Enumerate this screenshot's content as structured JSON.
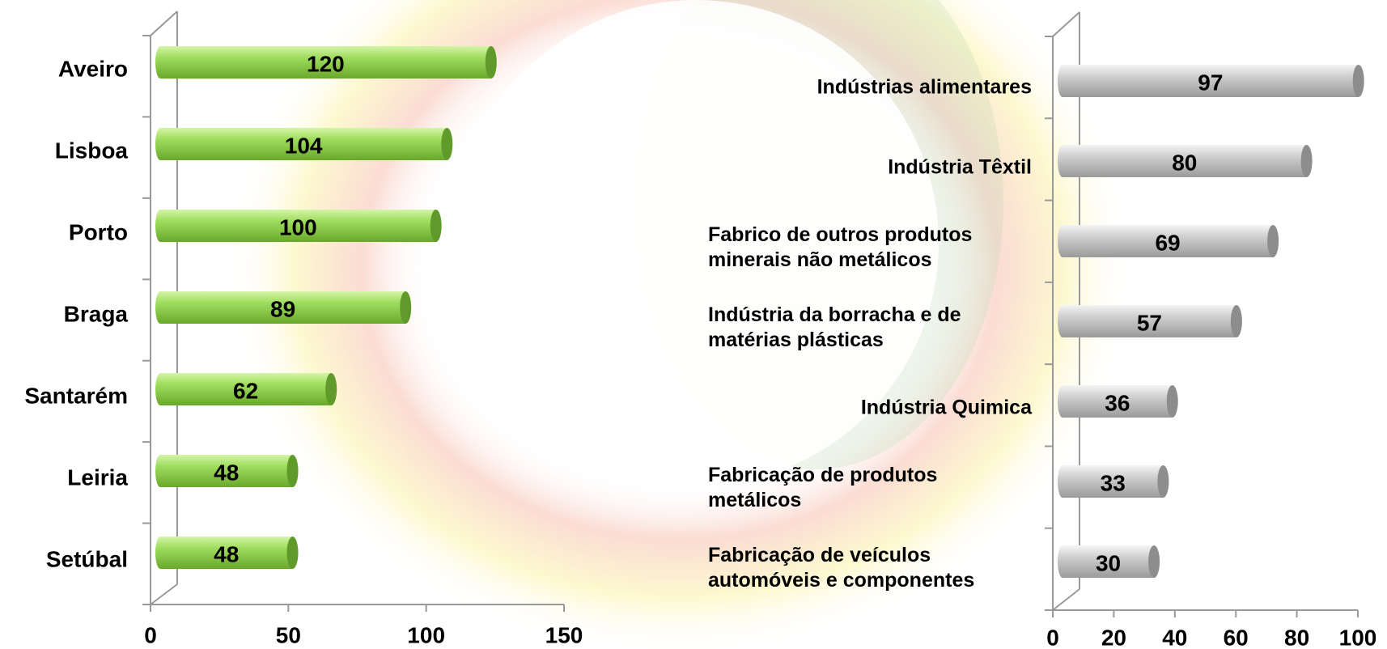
{
  "chart_data": [
    {
      "type": "bar",
      "orientation": "horizontal",
      "categories": [
        "Aveiro",
        "Lisboa",
        "Porto",
        "Braga",
        "Santarém",
        "Leiria",
        "Setúbal"
      ],
      "values": [
        120,
        104,
        100,
        89,
        62,
        48,
        48
      ],
      "color": "#8fd14f",
      "xlim": [
        0,
        150
      ],
      "xticks": [
        0,
        50,
        100,
        150
      ]
    },
    {
      "type": "bar",
      "orientation": "horizontal",
      "categories": [
        "Indústrias alimentares",
        "Indústria Têxtil",
        "Fabrico de outros produtos minerais não metálicos",
        "Indústria da borracha e de matérias plásticas",
        "Indústria Quimica",
        "Fabricação de produtos metálicos",
        "Fabricação de veículos automóveis e componentes"
      ],
      "values": [
        97,
        80,
        69,
        57,
        36,
        33,
        30
      ],
      "color": "#c8c8c8",
      "xlim": [
        0,
        100
      ],
      "xticks": [
        0,
        20,
        40,
        60,
        80,
        100
      ]
    }
  ]
}
